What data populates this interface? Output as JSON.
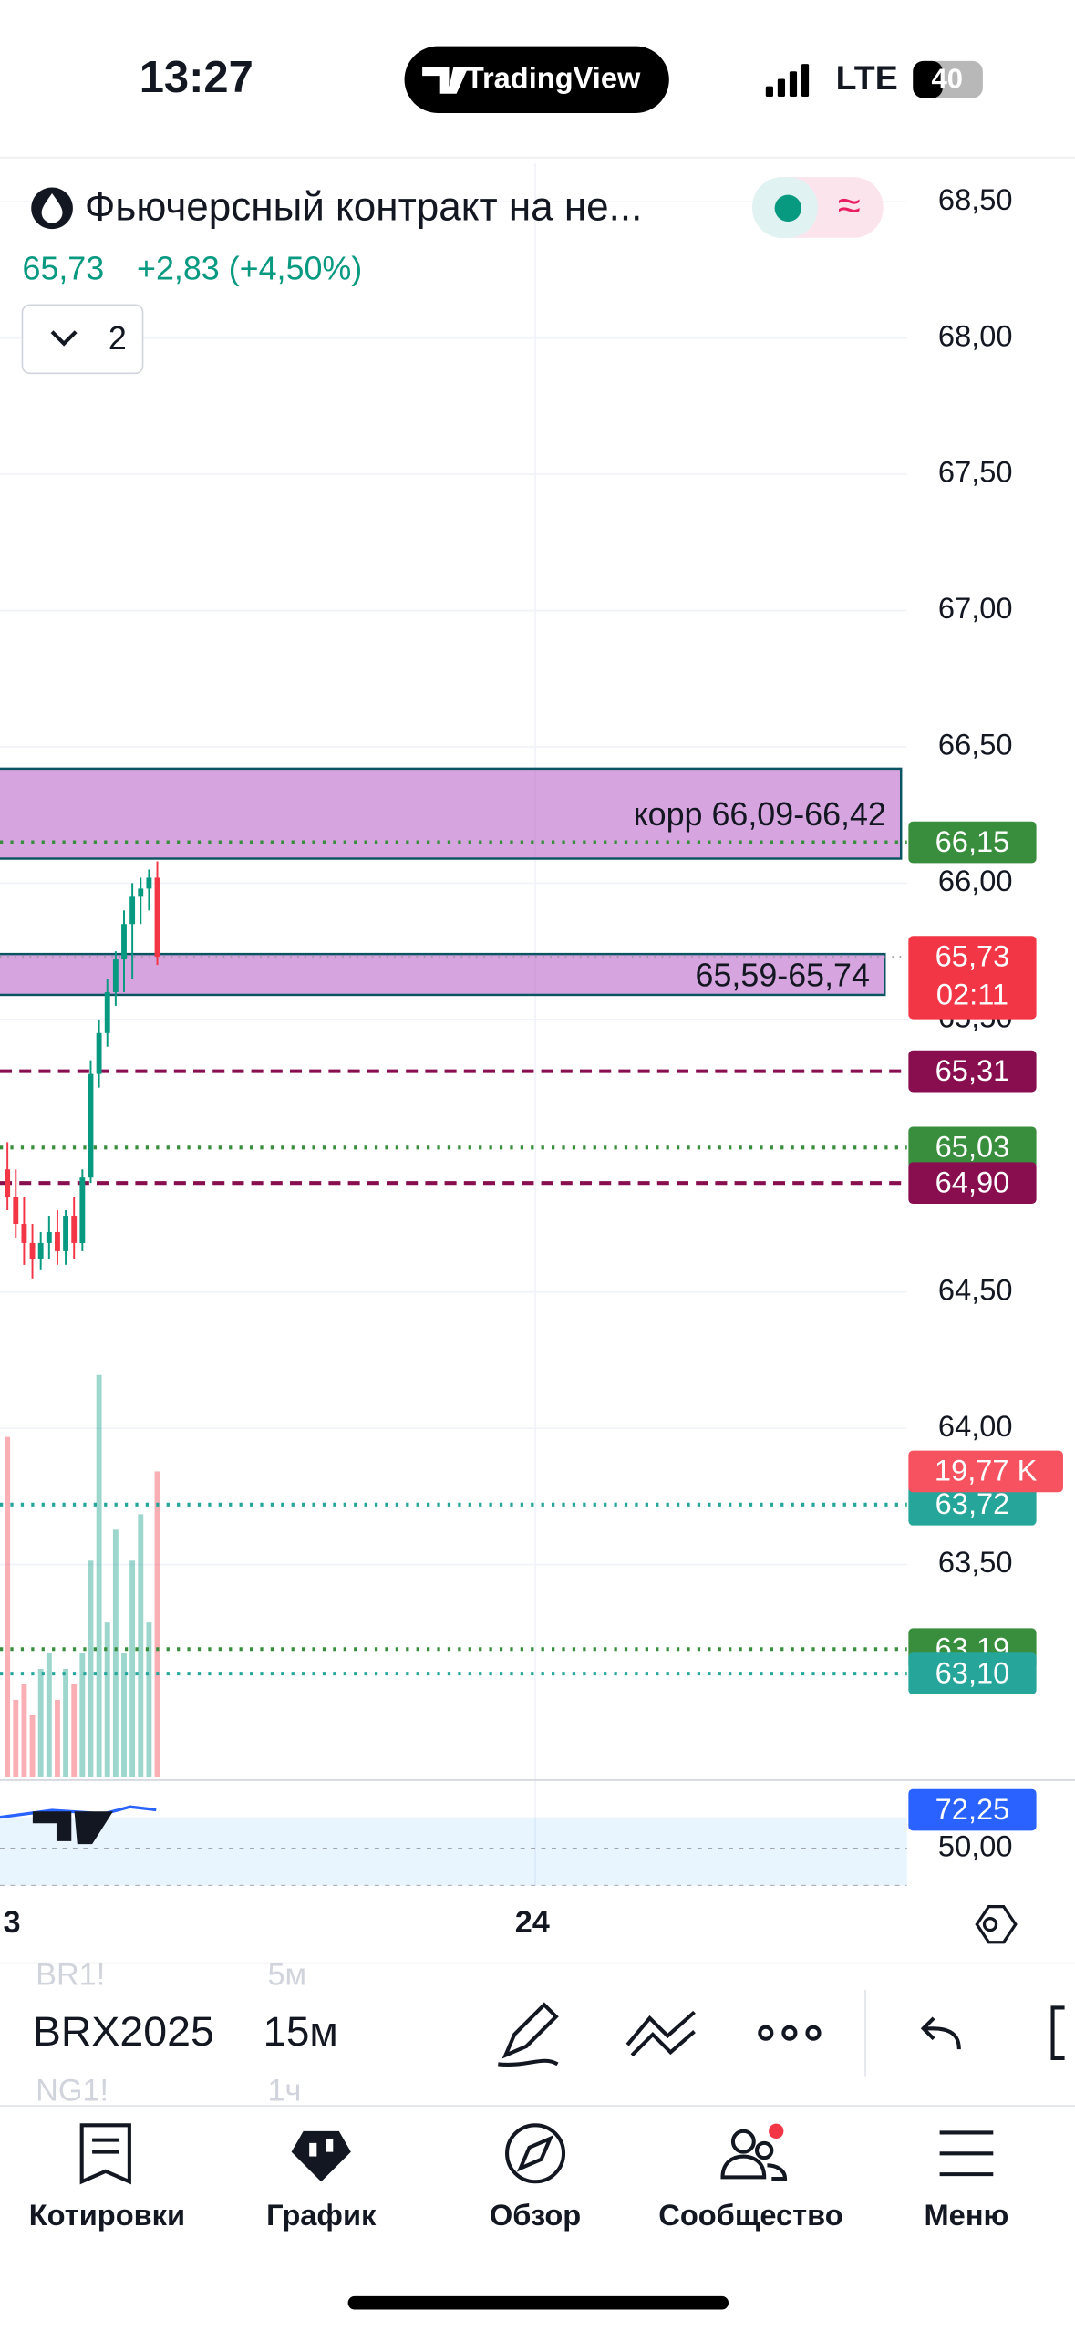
{
  "status_bar": {
    "time": "13:27",
    "app": "TradingView",
    "network": "LTE",
    "battery": "40"
  },
  "header": {
    "title": "Фьючерсный контракт на не...",
    "price": "65,73",
    "change": "+2,83 (+4,50%)",
    "studies_count": "2"
  },
  "chart": {
    "ylim": [
      62.72,
      68.64
    ],
    "yticks": [
      {
        "value": 68.5,
        "label": "68,50"
      },
      {
        "value": 68,
        "label": "68,00"
      },
      {
        "value": 67.5,
        "label": "67,50"
      },
      {
        "value": 67,
        "label": "67,00"
      },
      {
        "value": 66.5,
        "label": "66,50"
      },
      {
        "value": 66,
        "label": "66,00"
      },
      {
        "value": 65.5,
        "label": "65,50"
      },
      {
        "value": 64.5,
        "label": "64,50"
      },
      {
        "value": 64,
        "label": "64,00"
      },
      {
        "value": 63.5,
        "label": "63,50"
      }
    ],
    "x_labels": [
      "3",
      "24"
    ],
    "candles": {
      "up_color": "#089981",
      "down_color": "#f23645",
      "open": [
        64.95,
        64.85,
        64.75,
        64.68,
        64.62,
        64.68,
        64.72,
        64.65,
        64.78,
        64.68,
        64.92,
        65.3,
        65.45,
        65.6,
        65.72,
        65.85,
        65.95,
        65.98,
        66.02
      ],
      "high": [
        65.05,
        64.95,
        64.85,
        64.75,
        64.72,
        64.78,
        64.8,
        64.8,
        64.85,
        64.95,
        65.35,
        65.5,
        65.65,
        65.75,
        65.9,
        66,
        66.02,
        66.05,
        66.08
      ],
      "low": [
        64.8,
        64.7,
        64.6,
        64.55,
        64.58,
        64.62,
        64.6,
        64.6,
        64.62,
        64.65,
        64.9,
        65.25,
        65.4,
        65.55,
        65.6,
        65.65,
        65.85,
        65.9,
        65.7
      ],
      "close": [
        64.85,
        64.75,
        64.68,
        64.62,
        64.68,
        64.72,
        64.65,
        64.78,
        64.68,
        64.92,
        65.3,
        65.45,
        65.6,
        65.72,
        65.85,
        65.95,
        65.98,
        66.02,
        65.73
      ]
    },
    "volume": {
      "values": [
        22,
        5,
        6,
        4,
        7,
        8,
        5,
        7,
        6,
        8,
        14,
        26,
        10,
        16,
        8,
        14,
        17,
        10,
        19.77
      ],
      "last_label": "19,77 K",
      "badge_color": "#f7525f"
    },
    "rsi": {
      "values": [
        68,
        70,
        72,
        71,
        70,
        74,
        72.25
      ],
      "last_label": "72,25",
      "badge_color": "#2962ff",
      "color": "#2962ff",
      "yticks": [
        {
          "value": 50,
          "label": "50,00"
        }
      ]
    },
    "zones": [
      {
        "low": 66.09,
        "high": 66.42,
        "label": "корр 66,09-66,42"
      },
      {
        "low": 65.59,
        "high": 65.74,
        "label": "65,59-65,74"
      }
    ],
    "current_price": {
      "value": 65.73,
      "label": "65,73",
      "timer": "02:11",
      "color": "#f23645"
    },
    "levels": [
      {
        "value": 66.15,
        "label": "66,15",
        "color": "#388e3c",
        "style": "dotted"
      },
      {
        "value": 65.31,
        "label": "65,31",
        "color": "#880e4f",
        "style": "dashed"
      },
      {
        "value": 65.03,
        "label": "65,03",
        "color": "#388e3c",
        "style": "dotted"
      },
      {
        "value": 64.9,
        "label": "64,90",
        "color": "#880e4f",
        "style": "dashed"
      },
      {
        "value": 63.72,
        "label": "63,72",
        "color": "#26a69a",
        "style": "dotted"
      },
      {
        "value": 63.19,
        "label": "63,19",
        "color": "#388e3c",
        "style": "dotted"
      },
      {
        "value": 63.1,
        "label": "63,10",
        "color": "#26a69a",
        "style": "dotted"
      }
    ]
  },
  "toolbar": {
    "symbol": "BRX2025",
    "symbol_prev": "BR1!",
    "symbol_next": "NG1!",
    "interval": "15м",
    "interval_prev": "5м",
    "interval_next": "1ч"
  },
  "nav": [
    "Котировки",
    "График",
    "Обзор",
    "Сообщество",
    "Меню"
  ]
}
